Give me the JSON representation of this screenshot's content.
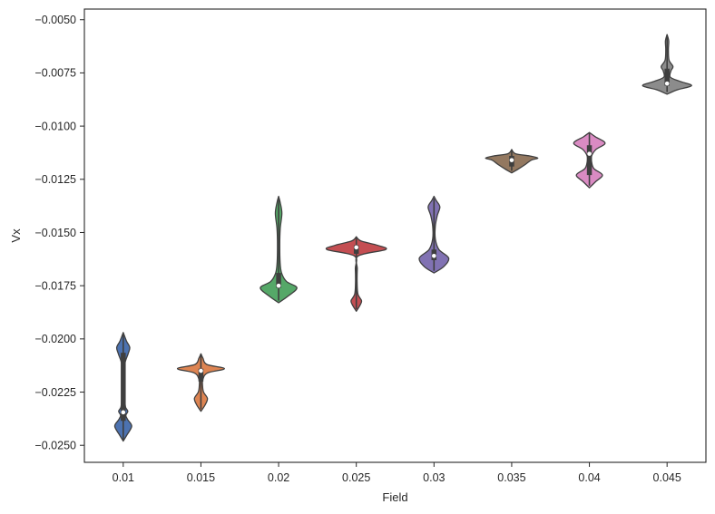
{
  "chart_data": {
    "type": "violin",
    "xlabel": "Field",
    "ylabel": "Vx",
    "categories": [
      "0.01",
      "0.015",
      "0.02",
      "0.025",
      "0.03",
      "0.035",
      "0.04",
      "0.045"
    ],
    "ylim": [
      -0.0258,
      -0.0045
    ],
    "yticks": [
      -0.025,
      -0.0225,
      -0.02,
      -0.0175,
      -0.015,
      -0.0125,
      -0.01,
      -0.0075,
      -0.005
    ],
    "ytick_labels": [
      "−0.0250",
      "−0.0225",
      "−0.0200",
      "−0.0175",
      "−0.0150",
      "−0.0125",
      "−0.0100",
      "−0.0075",
      "−0.0050"
    ],
    "grid": false,
    "series": [
      {
        "category": "0.01",
        "color": "#4c72b0",
        "min": -0.02475,
        "max": -0.0197,
        "q1": -0.02385,
        "q3": -0.02065,
        "median": -0.02345,
        "profile": [
          [
            -0.0248,
            0.0
          ],
          [
            -0.0245,
            0.12
          ],
          [
            -0.0241,
            0.26
          ],
          [
            -0.0238,
            0.14
          ],
          [
            -0.0236,
            0.08
          ],
          [
            -0.0234,
            0.14
          ],
          [
            -0.0232,
            0.07
          ],
          [
            -0.0228,
            0.045
          ],
          [
            -0.022,
            0.04
          ],
          [
            -0.0212,
            0.045
          ],
          [
            -0.0207,
            0.15
          ],
          [
            -0.0204,
            0.2
          ],
          [
            -0.0201,
            0.1
          ],
          [
            -0.0197,
            0.0
          ]
        ]
      },
      {
        "category": "0.015",
        "color": "#dd8452",
        "min": -0.0233,
        "max": -0.0207,
        "q1": -0.022,
        "q3": -0.0214,
        "median": -0.0215,
        "profile": [
          [
            -0.0234,
            0.0
          ],
          [
            -0.0231,
            0.13
          ],
          [
            -0.0228,
            0.2
          ],
          [
            -0.0225,
            0.08
          ],
          [
            -0.0222,
            0.05
          ],
          [
            -0.0219,
            0.06
          ],
          [
            -0.0216,
            0.2
          ],
          [
            -0.0214,
            0.72
          ],
          [
            -0.0212,
            0.18
          ],
          [
            -0.0209,
            0.06
          ],
          [
            -0.0207,
            0.0
          ]
        ]
      },
      {
        "category": "0.02",
        "color": "#55a868",
        "min": -0.0182,
        "max": -0.0134,
        "q1": -0.0176,
        "q3": -0.0169,
        "median": -0.0175,
        "profile": [
          [
            -0.0183,
            0.0
          ],
          [
            -0.018,
            0.28
          ],
          [
            -0.0176,
            0.56
          ],
          [
            -0.0173,
            0.24
          ],
          [
            -0.0169,
            0.09
          ],
          [
            -0.0164,
            0.045
          ],
          [
            -0.0155,
            0.035
          ],
          [
            -0.0148,
            0.05
          ],
          [
            -0.0141,
            0.1
          ],
          [
            -0.0136,
            0.05
          ],
          [
            -0.0133,
            0.0
          ]
        ]
      },
      {
        "category": "0.025",
        "color": "#c44e52",
        "min": -0.0186,
        "max": -0.0152,
        "q1": -0.016,
        "q3": -0.0156,
        "median": -0.0157,
        "profile": [
          [
            -0.0187,
            0.0
          ],
          [
            -0.0184,
            0.12
          ],
          [
            -0.0182,
            0.16
          ],
          [
            -0.0179,
            0.05
          ],
          [
            -0.0174,
            0.025
          ],
          [
            -0.0167,
            0.03
          ],
          [
            -0.0161,
            0.06
          ],
          [
            -0.0158,
            0.9
          ],
          [
            -0.0156,
            0.65
          ],
          [
            -0.0154,
            0.15
          ],
          [
            -0.0152,
            0.0
          ]
        ]
      },
      {
        "category": "0.03",
        "color": "#8172b3",
        "min": -0.0168,
        "max": -0.0134,
        "q1": -0.0163,
        "q3": -0.0158,
        "median": -0.0161,
        "profile": [
          [
            -0.0169,
            0.0
          ],
          [
            -0.0166,
            0.3
          ],
          [
            -0.0162,
            0.45
          ],
          [
            -0.0158,
            0.15
          ],
          [
            -0.0153,
            0.04
          ],
          [
            -0.0147,
            0.04
          ],
          [
            -0.0142,
            0.1
          ],
          [
            -0.0138,
            0.18
          ],
          [
            -0.0135,
            0.07
          ],
          [
            -0.0133,
            0.0
          ]
        ]
      },
      {
        "category": "0.035",
        "color": "#937860",
        "min": -0.0121,
        "max": -0.0111,
        "q1": -0.0119,
        "q3": -0.0114,
        "median": -0.0116,
        "profile": [
          [
            -0.0122,
            0.0
          ],
          [
            -0.012,
            0.22
          ],
          [
            -0.0118,
            0.42
          ],
          [
            -0.0116,
            0.6
          ],
          [
            -0.0115,
            0.8
          ],
          [
            -0.0114,
            0.55
          ],
          [
            -0.0113,
            0.12
          ],
          [
            -0.0111,
            0.0
          ]
        ]
      },
      {
        "category": "0.04",
        "color": "#da8bc3",
        "min": -0.0128,
        "max": -0.0103,
        "q1": -0.0123,
        "q3": -0.0109,
        "median": -0.0113,
        "profile": [
          [
            -0.0129,
            0.0
          ],
          [
            -0.0126,
            0.2
          ],
          [
            -0.0123,
            0.4
          ],
          [
            -0.012,
            0.14
          ],
          [
            -0.0117,
            0.07
          ],
          [
            -0.0114,
            0.07
          ],
          [
            -0.0111,
            0.2
          ],
          [
            -0.0108,
            0.48
          ],
          [
            -0.0105,
            0.18
          ],
          [
            -0.0103,
            0.0
          ]
        ]
      },
      {
        "category": "0.045",
        "color": "#8c8c8c",
        "min": -0.0084,
        "max": -0.0057,
        "q1": -0.0081,
        "q3": -0.0073,
        "median": -0.008,
        "profile": [
          [
            -0.0085,
            0.0
          ],
          [
            -0.0083,
            0.3
          ],
          [
            -0.0081,
            0.75
          ],
          [
            -0.0079,
            0.4
          ],
          [
            -0.0077,
            0.1
          ],
          [
            -0.0074,
            0.12
          ],
          [
            -0.0072,
            0.18
          ],
          [
            -0.0069,
            0.06
          ],
          [
            -0.0064,
            0.04
          ],
          [
            -0.006,
            0.05
          ],
          [
            -0.0057,
            0.0
          ]
        ]
      }
    ]
  }
}
